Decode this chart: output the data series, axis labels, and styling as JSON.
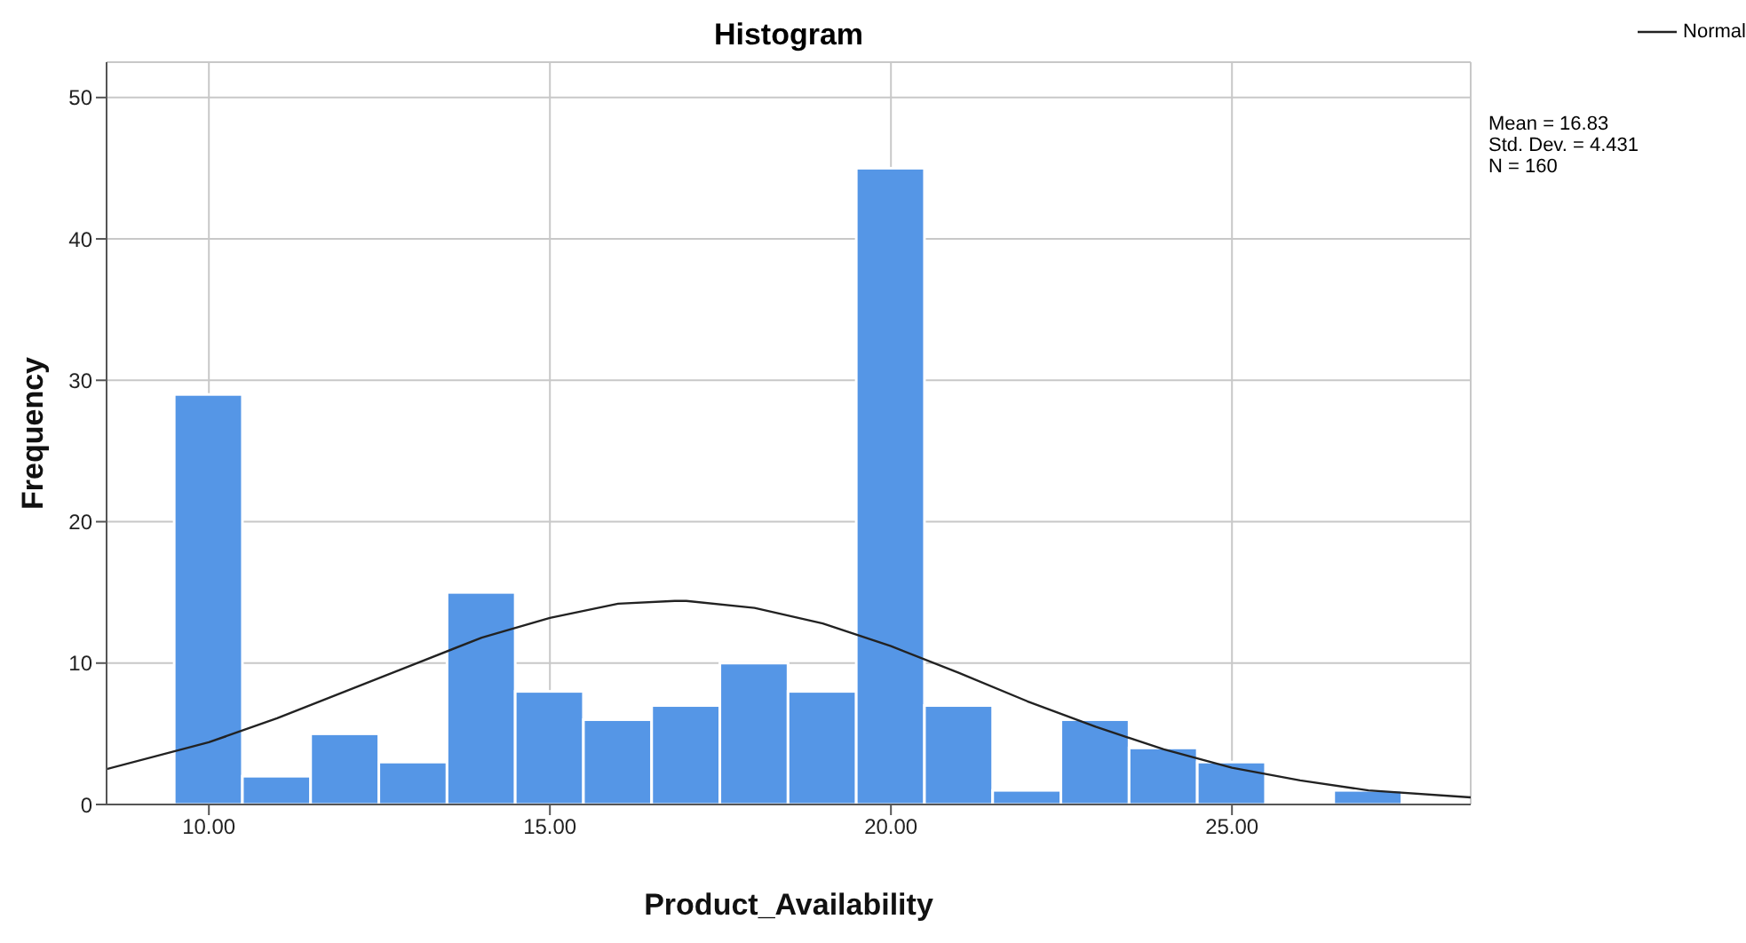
{
  "chart_data": {
    "type": "histogram",
    "title": "Histogram",
    "xlabel": "Product_Availability",
    "ylabel": "Frequency",
    "bins": [
      9.5,
      10.5,
      11.5,
      12.5,
      13.5,
      14.5,
      15.5,
      16.5,
      17.5,
      18.5,
      19.5,
      20.5,
      21.5,
      22.5,
      23.5,
      24.5,
      25.5,
      26.5,
      27.5
    ],
    "values": [
      29,
      2,
      5,
      3,
      15,
      8,
      6,
      7,
      10,
      8,
      45,
      7,
      1,
      6,
      4,
      3,
      0,
      1
    ],
    "color": "#5596e6",
    "series": [
      {
        "name": "Normal",
        "type": "line",
        "color": "#222222",
        "x": [
          8.5,
          10,
          11,
          12,
          13,
          14,
          15,
          16,
          16.83,
          17,
          18,
          19,
          20,
          21,
          22,
          23,
          24,
          25,
          26,
          27,
          28.5
        ],
        "values": [
          2.5,
          4.4,
          6.1,
          8.0,
          9.9,
          11.8,
          13.2,
          14.2,
          14.4,
          14.4,
          13.9,
          12.8,
          11.2,
          9.3,
          7.3,
          5.5,
          3.9,
          2.6,
          1.7,
          1.0,
          0.5
        ]
      }
    ],
    "xlim": [
      8.5,
      28.5
    ],
    "xticks": [
      {
        "value": 10,
        "label": "10.00"
      },
      {
        "value": 15,
        "label": "15.00"
      },
      {
        "value": 20,
        "label": "20.00"
      },
      {
        "value": 25,
        "label": "25.00"
      }
    ],
    "ylim": [
      0,
      52.5
    ],
    "yticks": [
      0,
      10,
      20,
      30,
      40,
      50
    ],
    "grid": true,
    "legend": "top right",
    "marker": "none",
    "annotations": [
      "Mean = 16.83",
      "Std. Dev. = 4.431",
      "N = 160"
    ]
  }
}
